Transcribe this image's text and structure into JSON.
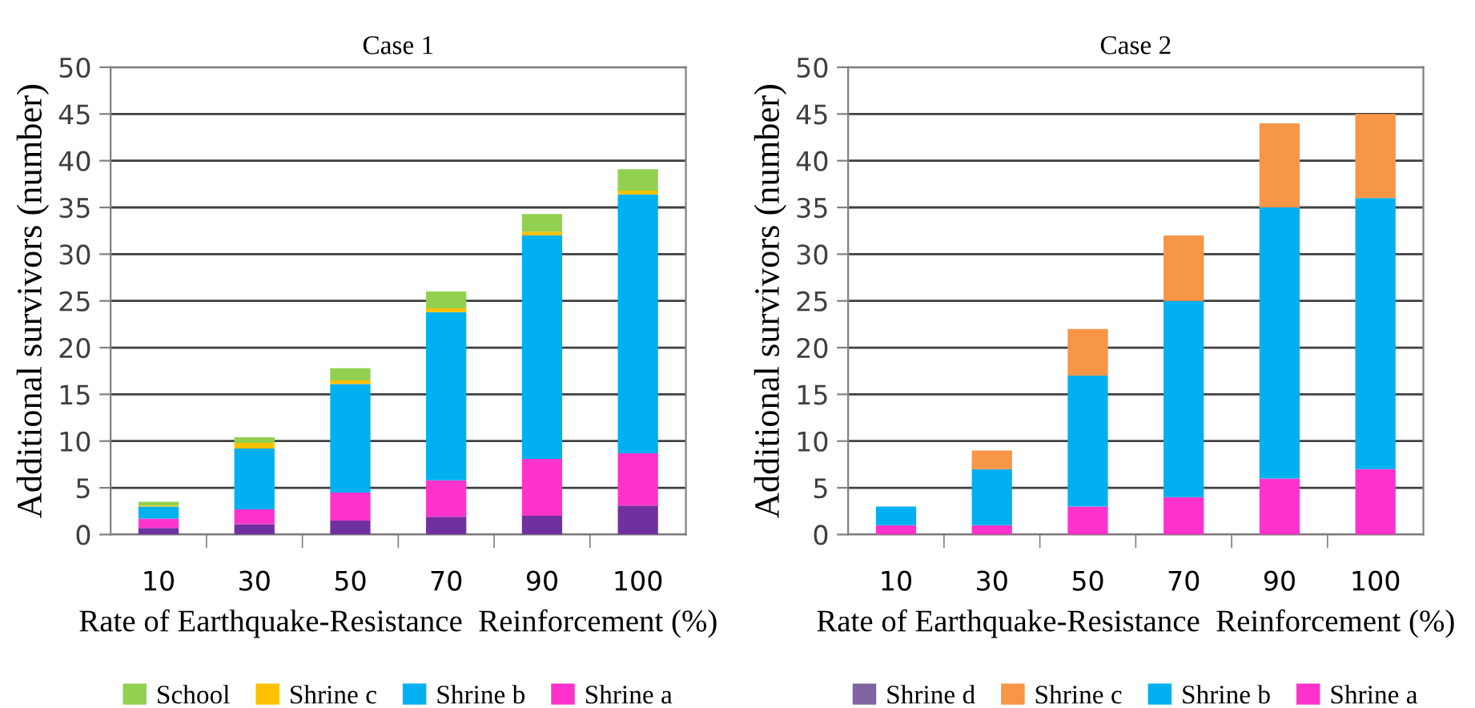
{
  "chart_data": [
    {
      "type": "bar",
      "title": "Case 1",
      "xlabel": "Rate of Earthquake-Resistance  Reinforcement (%)",
      "ylabel": "Additional survivors (number)",
      "categories": [
        "10",
        "30",
        "50",
        "70",
        "90",
        "100"
      ],
      "stacked": true,
      "ylim": [
        0,
        50
      ],
      "yticks": [
        0,
        5,
        10,
        15,
        20,
        25,
        30,
        35,
        40,
        45,
        50
      ],
      "grid": "y",
      "legend": "bottom",
      "series": [
        {
          "color": "#7030a0",
          "values": [
            0.7,
            1.1,
            1.5,
            1.9,
            2.0,
            3.1
          ]
        },
        {
          "name": "Shrine a",
          "color": "#ff33cc",
          "values": [
            1.0,
            1.6,
            3.0,
            3.9,
            6.1,
            5.6
          ]
        },
        {
          "name": "Shrine b",
          "color": "#00b0f0",
          "values": [
            1.3,
            6.5,
            11.6,
            18.0,
            23.9,
            27.7
          ]
        },
        {
          "name": "Shrine c",
          "color": "#ffc000",
          "values": [
            0.1,
            0.6,
            0.4,
            0.4,
            0.4,
            0.4
          ]
        },
        {
          "name": "School",
          "color": "#92d050",
          "values": [
            0.4,
            0.6,
            1.3,
            1.8,
            1.9,
            2.3
          ]
        }
      ]
    },
    {
      "type": "bar",
      "title": "Case 2",
      "xlabel": "Rate of Earthquake-Resistance  Reinforcement (%)",
      "ylabel": "Additional survivors (number)",
      "categories": [
        "10",
        "30",
        "50",
        "70",
        "90",
        "100"
      ],
      "stacked": true,
      "ylim": [
        0,
        50
      ],
      "yticks": [
        0,
        5,
        10,
        15,
        20,
        25,
        30,
        35,
        40,
        45,
        50
      ],
      "grid": "y",
      "legend": "bottom",
      "series": [
        {
          "name": "Shrine a",
          "color": "#ff33cc",
          "values": [
            1,
            1,
            3,
            4,
            6,
            7
          ]
        },
        {
          "name": "Shrine b",
          "color": "#00b0f0",
          "values": [
            2,
            6,
            14,
            21,
            29,
            29
          ]
        },
        {
          "name": "Shrine c",
          "color": "#f79646",
          "values": [
            0,
            2,
            5,
            7,
            9,
            9
          ]
        },
        {
          "name": "Shrine d",
          "color": "#8064a2",
          "values": [
            0,
            0,
            0,
            0,
            0,
            0
          ]
        }
      ]
    }
  ]
}
